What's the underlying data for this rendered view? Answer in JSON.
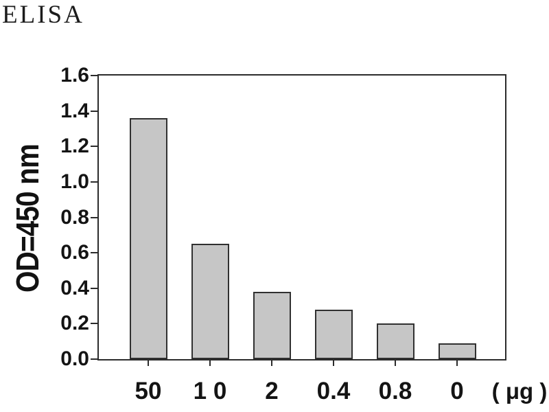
{
  "colors": {
    "bar_fill": "#c6c6c6",
    "bar_border": "#303030",
    "axis": "#2b2b2b",
    "text": "#141414",
    "background": "#ffffff"
  },
  "chart_data": {
    "type": "bar",
    "title": "ELISA",
    "categories": [
      "50",
      "1 0",
      "2",
      "0.4",
      "0.8",
      "0"
    ],
    "values": [
      1.36,
      0.65,
      0.38,
      0.28,
      0.2,
      0.09
    ],
    "xlabel": "( μg )",
    "ylabel": "OD=450 nm",
    "ylim": [
      0,
      1.6
    ],
    "ytick_labels": [
      "0.0",
      "0.2",
      "0.4",
      "0.6",
      "0.8",
      "1.0",
      "1.2",
      "1.4",
      "1.6"
    ],
    "grid": false,
    "legend": "none",
    "bar_outline": true,
    "axis_box": true,
    "ticks_out": true
  }
}
